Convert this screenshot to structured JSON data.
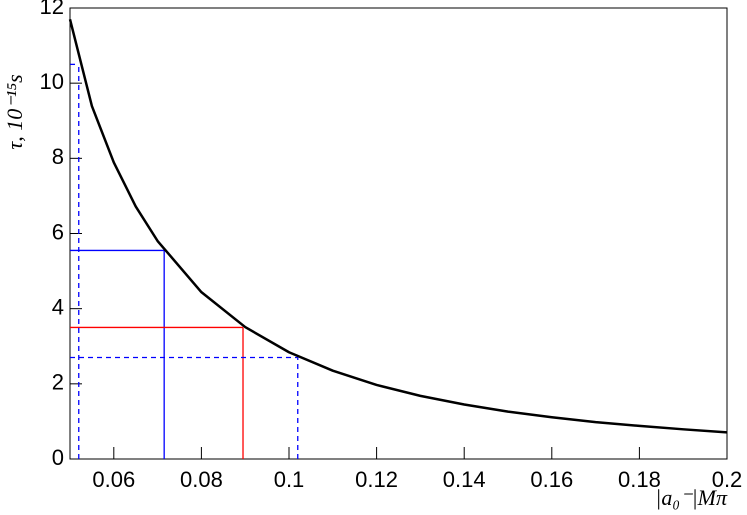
{
  "chart_data": {
    "type": "line",
    "x_label": "|a₀⁻|Mπ",
    "y_label": "τ, 10⁻¹⁵s",
    "x": [
      0.05,
      0.055,
      0.06,
      0.065,
      0.07,
      0.08,
      0.09,
      0.1,
      0.11,
      0.12,
      0.13,
      0.14,
      0.15,
      0.16,
      0.17,
      0.18,
      0.19,
      0.2
    ],
    "series": [
      {
        "color": "#000000",
        "values": [
          11.7,
          9.39,
          7.89,
          6.72,
          5.8,
          4.44,
          3.51,
          2.84,
          2.35,
          1.97,
          1.68,
          1.45,
          1.26,
          1.11,
          0.98,
          0.88,
          0.79,
          0.71
        ]
      }
    ],
    "markers": [
      {
        "x": 0.0715,
        "y": 5.55,
        "color": "#0000ff",
        "dashed": false
      },
      {
        "x": 0.0895,
        "y": 3.5,
        "color": "#ff0000",
        "dashed": false
      },
      {
        "x": 0.102,
        "y": 2.7,
        "color": "#0000ff",
        "dashed": true
      },
      {
        "x": 0.052,
        "y": 10.5,
        "color": "#0000ff",
        "dashed": true
      }
    ],
    "xlim": [
      0.05,
      0.2
    ],
    "ylim": [
      0,
      12
    ],
    "xticks": [
      0.06,
      0.08,
      0.1,
      0.12,
      0.14,
      0.16,
      0.18,
      0.2
    ],
    "yticks": [
      0,
      2,
      4,
      6,
      8,
      10,
      12
    ]
  }
}
